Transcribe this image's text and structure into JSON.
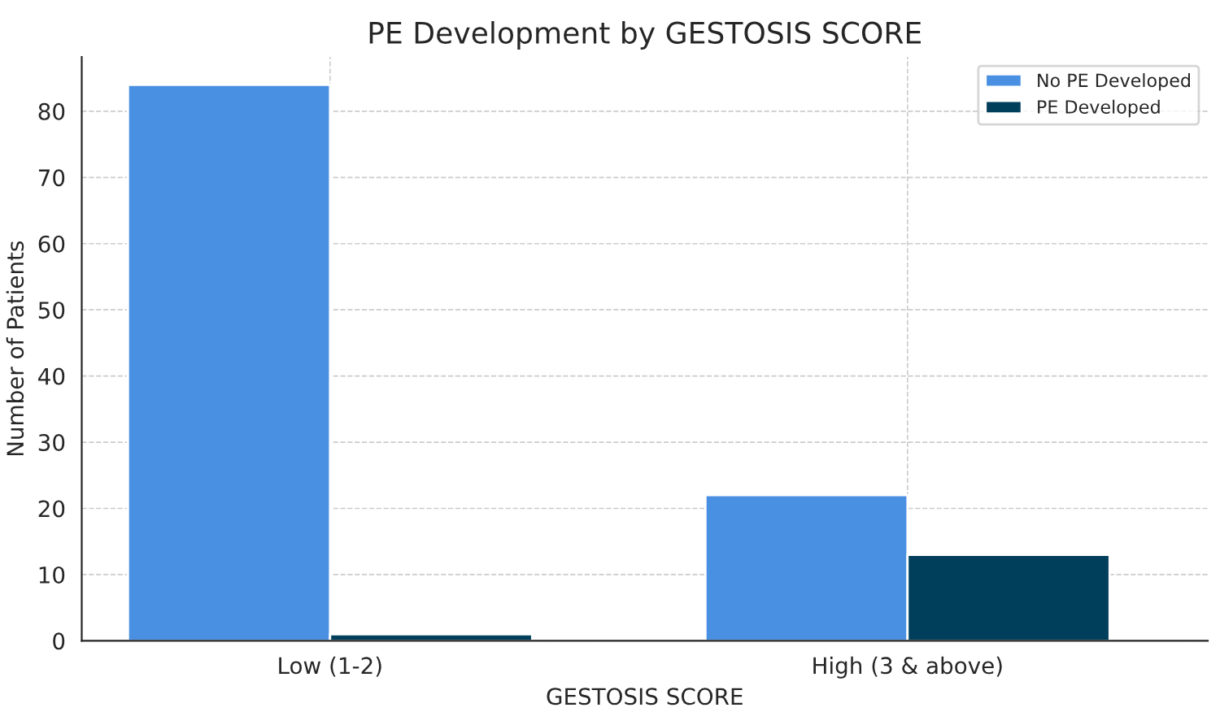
{
  "chart_data": {
    "type": "bar",
    "title": "PE Development by GESTOSIS SCORE",
    "xlabel": "GESTOSIS SCORE",
    "ylabel": "Number of Patients",
    "categories": [
      "Low (1-2)",
      "High (3 & above)"
    ],
    "series": [
      {
        "name": "No PE Developed",
        "color": "#4a90e2",
        "values": [
          84,
          22
        ]
      },
      {
        "name": "PE Developed",
        "color": "#003f5c",
        "values": [
          1,
          13
        ]
      }
    ],
    "ylim": [
      0,
      88.2
    ],
    "yticks": [
      0,
      10,
      20,
      30,
      40,
      50,
      60,
      70,
      80
    ],
    "grid": true,
    "legend": "top right"
  }
}
